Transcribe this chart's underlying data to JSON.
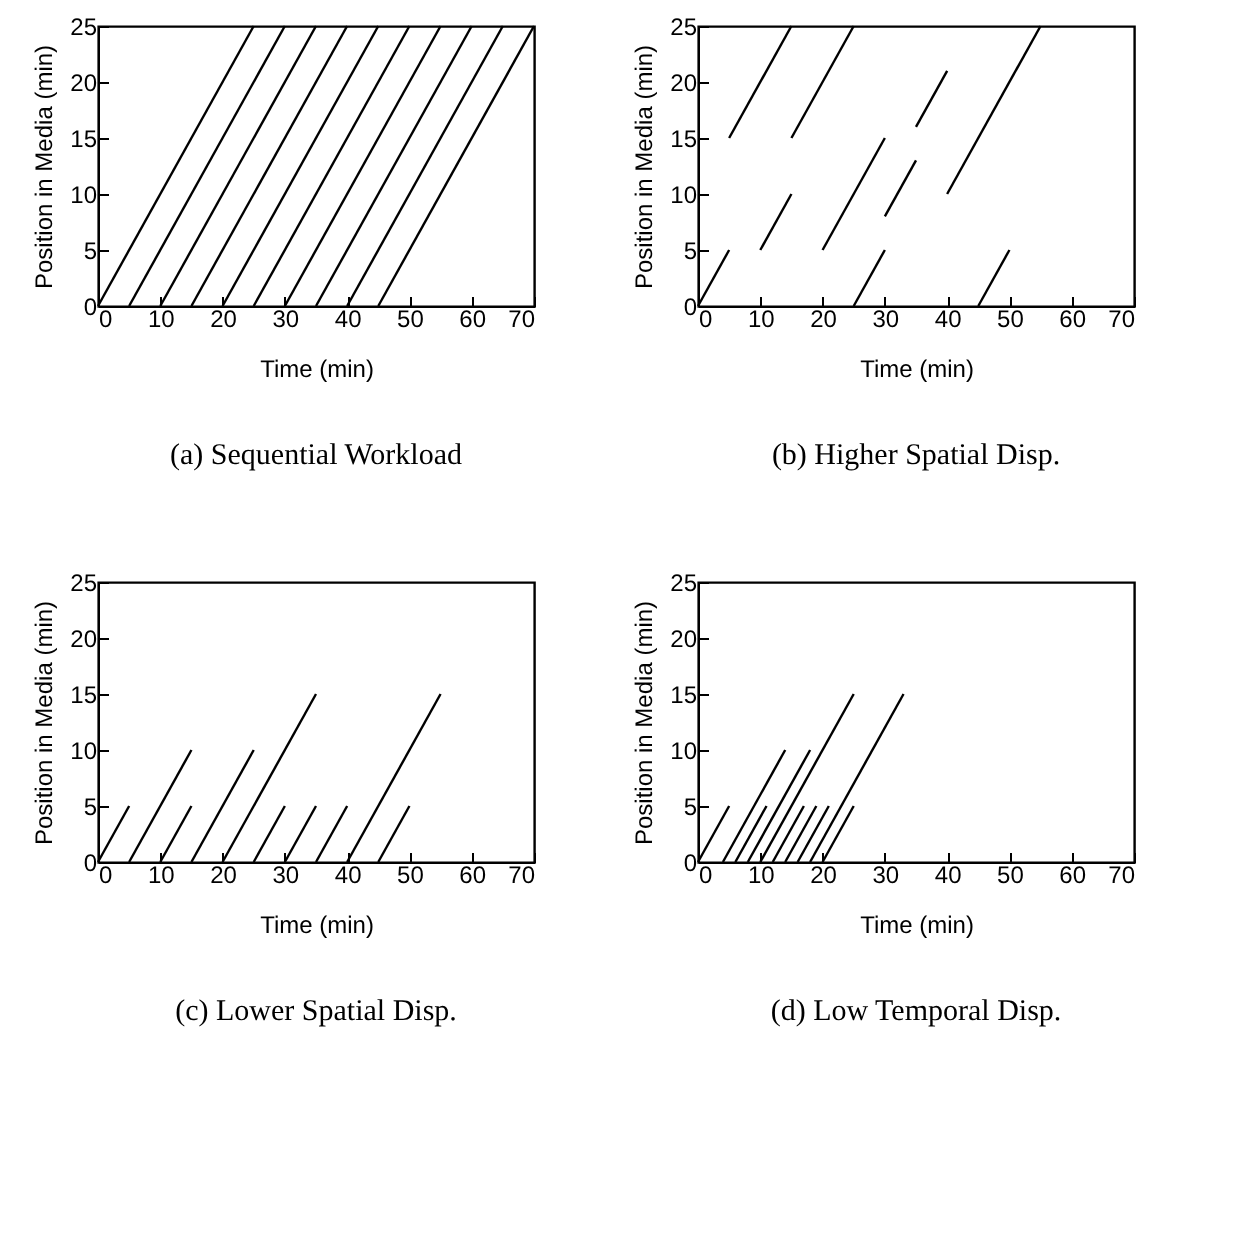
{
  "chart_data": [
    {
      "type": "line",
      "title": "(a) Sequential Workload",
      "xlabel": "Time (min)",
      "ylabel": "Position in Media (min)",
      "xlim": [
        0,
        70
      ],
      "ylim": [
        0,
        25
      ],
      "xticks": [
        0,
        10,
        20,
        30,
        40,
        50,
        60,
        70
      ],
      "yticks": [
        0,
        5,
        10,
        15,
        20,
        25
      ],
      "series": [
        {
          "color": "#000000",
          "x": [
            0,
            25
          ],
          "values": [
            0,
            25
          ]
        },
        {
          "color": "#000000",
          "x": [
            5,
            30
          ],
          "values": [
            0,
            25
          ]
        },
        {
          "color": "#000000",
          "x": [
            10,
            35
          ],
          "values": [
            0,
            25
          ]
        },
        {
          "color": "#000000",
          "x": [
            15,
            40
          ],
          "values": [
            0,
            25
          ]
        },
        {
          "color": "#000000",
          "x": [
            20,
            45
          ],
          "values": [
            0,
            25
          ]
        },
        {
          "color": "#000000",
          "x": [
            25,
            50
          ],
          "values": [
            0,
            25
          ]
        },
        {
          "color": "#000000",
          "x": [
            30,
            55
          ],
          "values": [
            0,
            25
          ]
        },
        {
          "color": "#000000",
          "x": [
            35,
            60
          ],
          "values": [
            0,
            25
          ]
        },
        {
          "color": "#000000",
          "x": [
            40,
            65
          ],
          "values": [
            0,
            25
          ]
        },
        {
          "color": "#000000",
          "x": [
            45,
            70
          ],
          "values": [
            0,
            25
          ]
        }
      ]
    },
    {
      "type": "line",
      "title": "(b) Higher Spatial Disp.",
      "xlabel": "Time (min)",
      "ylabel": "Position in Media (min)",
      "xlim": [
        0,
        70
      ],
      "ylim": [
        0,
        25
      ],
      "xticks": [
        0,
        10,
        20,
        30,
        40,
        50,
        60,
        70
      ],
      "yticks": [
        0,
        5,
        10,
        15,
        20,
        25
      ],
      "series": [
        {
          "color": "#000000",
          "x": [
            0,
            5
          ],
          "values": [
            0,
            5
          ]
        },
        {
          "color": "#000000",
          "x": [
            5,
            15
          ],
          "values": [
            15,
            25
          ]
        },
        {
          "color": "#000000",
          "x": [
            10,
            15
          ],
          "values": [
            5,
            10
          ]
        },
        {
          "color": "#000000",
          "x": [
            15,
            25
          ],
          "values": [
            15,
            25
          ]
        },
        {
          "color": "#000000",
          "x": [
            20,
            30
          ],
          "values": [
            5,
            15
          ]
        },
        {
          "color": "#000000",
          "x": [
            25,
            30
          ],
          "values": [
            0,
            5
          ]
        },
        {
          "color": "#000000",
          "x": [
            30,
            35
          ],
          "values": [
            8,
            13
          ]
        },
        {
          "color": "#000000",
          "x": [
            35,
            40
          ],
          "values": [
            16,
            21
          ]
        },
        {
          "color": "#000000",
          "x": [
            40,
            55
          ],
          "values": [
            10,
            25
          ]
        },
        {
          "color": "#000000",
          "x": [
            45,
            50
          ],
          "values": [
            0,
            5
          ]
        }
      ]
    },
    {
      "type": "line",
      "title": "(c) Lower Spatial Disp.",
      "xlabel": "Time (min)",
      "ylabel": "Position in Media (min)",
      "xlim": [
        0,
        70
      ],
      "ylim": [
        0,
        25
      ],
      "xticks": [
        0,
        10,
        20,
        30,
        40,
        50,
        60,
        70
      ],
      "yticks": [
        0,
        5,
        10,
        15,
        20,
        25
      ],
      "series": [
        {
          "color": "#000000",
          "x": [
            0,
            5
          ],
          "values": [
            0,
            5
          ]
        },
        {
          "color": "#000000",
          "x": [
            5,
            15
          ],
          "values": [
            0,
            10
          ]
        },
        {
          "color": "#000000",
          "x": [
            10,
            15
          ],
          "values": [
            0,
            5
          ]
        },
        {
          "color": "#000000",
          "x": [
            15,
            25
          ],
          "values": [
            0,
            10
          ]
        },
        {
          "color": "#000000",
          "x": [
            20,
            35
          ],
          "values": [
            0,
            15
          ]
        },
        {
          "color": "#000000",
          "x": [
            25,
            30
          ],
          "values": [
            0,
            5
          ]
        },
        {
          "color": "#000000",
          "x": [
            30,
            35
          ],
          "values": [
            0,
            5
          ]
        },
        {
          "color": "#000000",
          "x": [
            35,
            40
          ],
          "values": [
            0,
            5
          ]
        },
        {
          "color": "#000000",
          "x": [
            40,
            55
          ],
          "values": [
            0,
            15
          ]
        },
        {
          "color": "#000000",
          "x": [
            45,
            50
          ],
          "values": [
            0,
            5
          ]
        }
      ]
    },
    {
      "type": "line",
      "title": "(d) Low Temporal Disp.",
      "xlabel": "Time (min)",
      "ylabel": "Position in Media (min)",
      "xlim": [
        0,
        70
      ],
      "ylim": [
        0,
        25
      ],
      "xticks": [
        0,
        10,
        20,
        30,
        40,
        50,
        60,
        70
      ],
      "yticks": [
        0,
        5,
        10,
        15,
        20,
        25
      ],
      "series": [
        {
          "color": "#000000",
          "x": [
            0,
            5
          ],
          "values": [
            0,
            5
          ]
        },
        {
          "color": "#000000",
          "x": [
            4,
            14
          ],
          "values": [
            0,
            10
          ]
        },
        {
          "color": "#000000",
          "x": [
            6,
            11
          ],
          "values": [
            0,
            5
          ]
        },
        {
          "color": "#000000",
          "x": [
            8,
            18
          ],
          "values": [
            0,
            10
          ]
        },
        {
          "color": "#000000",
          "x": [
            10,
            25
          ],
          "values": [
            0,
            15
          ]
        },
        {
          "color": "#000000",
          "x": [
            12,
            17
          ],
          "values": [
            0,
            5
          ]
        },
        {
          "color": "#000000",
          "x": [
            14,
            19
          ],
          "values": [
            0,
            5
          ]
        },
        {
          "color": "#000000",
          "x": [
            16,
            21
          ],
          "values": [
            0,
            5
          ]
        },
        {
          "color": "#000000",
          "x": [
            18,
            33
          ],
          "values": [
            0,
            15
          ]
        },
        {
          "color": "#000000",
          "x": [
            20,
            25
          ],
          "values": [
            0,
            5
          ]
        }
      ]
    }
  ]
}
